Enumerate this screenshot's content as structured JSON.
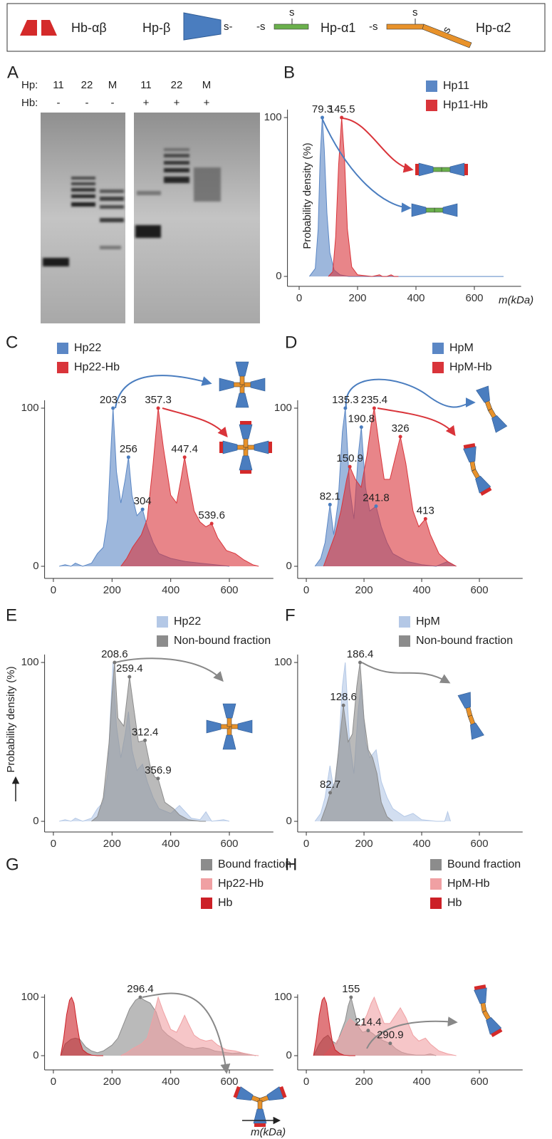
{
  "legend": {
    "items": [
      {
        "label": "Hb-αβ",
        "icon_labels": []
      },
      {
        "label": "Hp-β",
        "icon_labels": [
          "s-"
        ]
      },
      {
        "label": "Hp-α1",
        "icon_labels": [
          "-s",
          "s"
        ]
      },
      {
        "label": "Hp-α2",
        "icon_labels": [
          "-s",
          "s",
          "s"
        ]
      }
    ]
  },
  "gel": {
    "panel": "A",
    "row_labels": [
      "Hp:",
      "Hb:"
    ],
    "lanes": [
      {
        "hp": "11",
        "hb": "-"
      },
      {
        "hp": "22",
        "hb": "-"
      },
      {
        "hp": "M",
        "hb": "-"
      },
      {
        "hp": "11",
        "hb": "+"
      },
      {
        "hp": "22",
        "hb": "+"
      },
      {
        "hp": "M",
        "hb": "+"
      }
    ]
  },
  "chart_data": [
    {
      "panel": "B",
      "type": "area",
      "x_label": "m(kDa)",
      "y_label": "Probability density (%)",
      "xlim": [
        -40,
        760
      ],
      "ylim": [
        -5,
        105
      ],
      "xticks": [
        0,
        200,
        400,
        600
      ],
      "yticks": [
        0,
        100
      ],
      "series": [
        {
          "name": "Hp11",
          "color": "#5b87c5",
          "x": [
            35,
            55,
            65,
            72,
            79.3,
            86,
            95,
            105,
            120,
            140,
            170,
            200,
            300,
            450,
            700
          ],
          "values": [
            0,
            5,
            30,
            75,
            100,
            80,
            40,
            15,
            4,
            1,
            0,
            0,
            0,
            0,
            0
          ]
        },
        {
          "name": "Hp11-Hb",
          "color": "#d9343a",
          "x": [
            100,
            115,
            125,
            135,
            145.5,
            155,
            165,
            180,
            200,
            250,
            275,
            285,
            300,
            315,
            325,
            340
          ],
          "values": [
            0,
            3,
            25,
            70,
            100,
            75,
            30,
            6,
            1,
            0,
            1,
            0,
            0,
            1,
            0,
            0
          ]
        }
      ],
      "annotations": [
        {
          "x": 79.3,
          "y": 100,
          "color": "#4a7dbf"
        },
        {
          "x": 145.5,
          "y": 100,
          "color": "#d9343a"
        }
      ]
    },
    {
      "panel": "C",
      "type": "area",
      "xlim": [
        -30,
        750
      ],
      "ylim": [
        -5,
        105
      ],
      "xticks": [
        0,
        200,
        400,
        600
      ],
      "yticks": [
        0,
        100
      ],
      "series": [
        {
          "name": "Hp22",
          "color": "#5b87c5",
          "x": [
            20,
            40,
            60,
            75,
            100,
            130,
            150,
            170,
            185,
            195,
            203.3,
            215,
            230,
            245,
            256,
            268,
            285,
            304,
            320,
            340,
            360,
            400,
            450,
            500,
            550,
            600
          ],
          "values": [
            0,
            1,
            0,
            2,
            0,
            2,
            8,
            12,
            30,
            70,
            100,
            60,
            40,
            55,
            69,
            45,
            32,
            36,
            25,
            15,
            8,
            5,
            3,
            2,
            1,
            0
          ]
        },
        {
          "name": "Hp22-Hb",
          "color": "#d9343a",
          "x": [
            230,
            250,
            270,
            300,
            320,
            340,
            357.3,
            375,
            400,
            420,
            435,
            447.4,
            460,
            480,
            500,
            520,
            539.6,
            560,
            590,
            620,
            650,
            680,
            700
          ],
          "values": [
            0,
            5,
            12,
            20,
            30,
            65,
            100,
            75,
            45,
            40,
            55,
            69,
            55,
            35,
            28,
            25,
            27,
            18,
            10,
            8,
            4,
            1,
            0
          ]
        }
      ],
      "annotations": [
        {
          "x": 203.3,
          "y": 100,
          "color": "#4a7dbf"
        },
        {
          "x": 256,
          "y": 69,
          "color": "#4a7dbf"
        },
        {
          "x": 304,
          "y": 36,
          "color": "#4a7dbf"
        },
        {
          "x": 357.3,
          "y": 100,
          "color": "#d9343a"
        },
        {
          "x": 447.4,
          "y": 69,
          "color": "#d9343a"
        },
        {
          "x": 539.6,
          "y": 27,
          "color": "#d9343a"
        }
      ]
    },
    {
      "panel": "D",
      "type": "area",
      "xlim": [
        -30,
        750
      ],
      "ylim": [
        -5,
        105
      ],
      "xticks": [
        0,
        200,
        400,
        600
      ],
      "yticks": [
        0,
        100
      ],
      "series": [
        {
          "name": "HpM",
          "color": "#5b87c5",
          "x": [
            30,
            50,
            65,
            82.1,
            95,
            110,
            125,
            135.3,
            150,
            165,
            180,
            190.8,
            205,
            220,
            241.8,
            260,
            280,
            300,
            350,
            400,
            450,
            490,
            520
          ],
          "values": [
            0,
            5,
            15,
            39,
            20,
            40,
            85,
            100,
            50,
            30,
            70,
            88,
            50,
            35,
            38,
            25,
            15,
            8,
            3,
            1,
            0,
            3,
            0
          ]
        },
        {
          "name": "HpM-Hb",
          "color": "#d9343a",
          "x": [
            60,
            80,
            100,
            120,
            140,
            150.9,
            170,
            190,
            210,
            225,
            235.4,
            250,
            270,
            290,
            310,
            326,
            345,
            370,
            390,
            413,
            430,
            460,
            490,
            520
          ],
          "values": [
            0,
            10,
            20,
            35,
            55,
            63,
            55,
            50,
            70,
            90,
            100,
            80,
            55,
            55,
            70,
            82,
            65,
            35,
            25,
            30,
            20,
            8,
            3,
            0
          ]
        }
      ],
      "annotations": [
        {
          "x": 135.3,
          "y": 100,
          "color": "#4a7dbf"
        },
        {
          "x": 190.8,
          "y": 88,
          "color": "#4a7dbf"
        },
        {
          "x": 82.1,
          "y": 39,
          "color": "#4a7dbf"
        },
        {
          "x": 241.8,
          "y": 38,
          "color": "#4a7dbf"
        },
        {
          "x": 235.4,
          "y": 100,
          "color": "#d9343a"
        },
        {
          "x": 150.9,
          "y": 63,
          "color": "#d9343a"
        },
        {
          "x": 326,
          "y": 82,
          "color": "#d9343a"
        },
        {
          "x": 413,
          "y": 30,
          "color": "#d9343a"
        }
      ]
    },
    {
      "panel": "E",
      "type": "area",
      "y_label": "Probability density (%)",
      "xlim": [
        -30,
        750
      ],
      "ylim": [
        -5,
        105
      ],
      "xticks": [
        0,
        200,
        400,
        600
      ],
      "yticks": [
        0,
        100
      ],
      "series": [
        {
          "name": "Hp22",
          "color": "#b4c8e6",
          "x": [
            20,
            40,
            60,
            75,
            100,
            130,
            150,
            170,
            185,
            195,
            203.3,
            215,
            230,
            245,
            256,
            268,
            285,
            304,
            320,
            340,
            360,
            400,
            430,
            470,
            500,
            520,
            540,
            580,
            600
          ],
          "values": [
            0,
            1,
            0,
            2,
            0,
            2,
            8,
            12,
            30,
            70,
            100,
            60,
            40,
            55,
            69,
            45,
            32,
            36,
            25,
            15,
            8,
            5,
            10,
            2,
            1,
            6,
            0,
            1,
            0
          ]
        },
        {
          "name": "Non-bound fraction",
          "color": "#8c8c8c",
          "x": [
            130,
            150,
            170,
            190,
            200,
            208.6,
            220,
            240,
            259.4,
            275,
            290,
            312.4,
            330,
            345,
            356.9,
            380,
            410,
            430,
            460,
            500,
            520
          ],
          "values": [
            0,
            3,
            15,
            50,
            80,
            100,
            65,
            60,
            91,
            70,
            50,
            51,
            35,
            28,
            27,
            12,
            8,
            4,
            1,
            0,
            0
          ]
        }
      ],
      "annotations": [
        {
          "x": 208.6,
          "y": 100,
          "color": "#777777"
        },
        {
          "x": 259.4,
          "y": 91,
          "color": "#777777"
        },
        {
          "x": 312.4,
          "y": 51,
          "color": "#777777"
        },
        {
          "x": 356.9,
          "y": 27,
          "color": "#777777"
        }
      ]
    },
    {
      "panel": "F",
      "type": "area",
      "xlim": [
        -30,
        750
      ],
      "ylim": [
        -5,
        105
      ],
      "xticks": [
        0,
        200,
        400,
        600
      ],
      "yticks": [
        0,
        100
      ],
      "series": [
        {
          "name": "HpM",
          "color": "#b4c8e6",
          "x": [
            30,
            50,
            65,
            82,
            95,
            110,
            125,
            135,
            150,
            165,
            180,
            191,
            205,
            220,
            242,
            260,
            280,
            300,
            340,
            370,
            400,
            450,
            480,
            490,
            500
          ],
          "values": [
            0,
            5,
            15,
            35,
            20,
            40,
            85,
            100,
            50,
            30,
            70,
            88,
            50,
            40,
            45,
            25,
            15,
            8,
            3,
            5,
            1,
            0,
            0,
            6,
            0
          ]
        },
        {
          "name": "Non-bound fraction",
          "color": "#8c8c8c",
          "x": [
            50,
            70,
            82.7,
            100,
            115,
            128.6,
            145,
            160,
            175,
            186.4,
            200,
            215,
            230,
            245,
            260,
            280,
            300
          ],
          "values": [
            0,
            10,
            18,
            25,
            50,
            73,
            50,
            55,
            85,
            100,
            65,
            45,
            40,
            30,
            12,
            3,
            0
          ]
        }
      ],
      "annotations": [
        {
          "x": 186.4,
          "y": 100,
          "color": "#777777"
        },
        {
          "x": 128.6,
          "y": 73,
          "color": "#777777"
        },
        {
          "x": 82.7,
          "y": 18,
          "color": "#777777"
        }
      ]
    },
    {
      "panel": "G",
      "type": "area",
      "x_label": "m(kDa)",
      "xlim": [
        -30,
        750
      ],
      "ylim": [
        -5,
        105
      ],
      "xticks": [
        0,
        200,
        400,
        600
      ],
      "yticks": [
        0,
        100
      ],
      "series": [
        {
          "name": "Bound fraction",
          "color": "#8c8c8c",
          "x": [
            25,
            40,
            60,
            75,
            90,
            110,
            130,
            150,
            170,
            200,
            220,
            240,
            260,
            280,
            296.4,
            310,
            330,
            350,
            370,
            390,
            420,
            450,
            480,
            510,
            530,
            550,
            580,
            610,
            640,
            670,
            690
          ],
          "values": [
            0,
            20,
            28,
            30,
            28,
            15,
            8,
            5,
            8,
            18,
            30,
            55,
            80,
            95,
            100,
            95,
            90,
            75,
            45,
            35,
            25,
            15,
            12,
            14,
            12,
            8,
            6,
            4,
            5,
            2,
            0
          ]
        },
        {
          "name": "Hp22-Hb",
          "color": "#f0a0a3",
          "x": [
            230,
            250,
            270,
            300,
            320,
            340,
            357.3,
            375,
            400,
            420,
            435,
            447.4,
            460,
            480,
            500,
            520,
            539.6,
            560,
            590,
            620,
            650,
            680,
            700
          ],
          "values": [
            0,
            5,
            12,
            20,
            30,
            65,
            100,
            75,
            45,
            40,
            55,
            69,
            55,
            35,
            28,
            25,
            27,
            18,
            10,
            8,
            4,
            1,
            0
          ]
        },
        {
          "name": "Hb",
          "color": "#cc2027",
          "x": [
            25,
            35,
            45,
            55,
            62,
            70,
            80,
            90,
            100,
            115,
            130,
            150,
            170
          ],
          "values": [
            0,
            30,
            70,
            95,
            100,
            90,
            55,
            25,
            10,
            4,
            1,
            0,
            0
          ]
        }
      ],
      "annotations": [
        {
          "x": 296.4,
          "y": 100,
          "color": "#777777"
        }
      ]
    },
    {
      "panel": "H",
      "type": "area",
      "xlim": [
        -30,
        750
      ],
      "ylim": [
        -5,
        105
      ],
      "xticks": [
        0,
        200,
        400,
        600
      ],
      "yticks": [
        0,
        100
      ],
      "series": [
        {
          "name": "Bound fraction",
          "color": "#8c8c8c",
          "x": [
            25,
            45,
            60,
            75,
            90,
            105,
            120,
            135,
            145,
            155,
            165,
            180,
            195,
            214.4,
            230,
            250,
            270,
            290.9,
            310,
            330,
            350,
            380,
            410,
            430,
            450
          ],
          "values": [
            0,
            20,
            30,
            35,
            25,
            20,
            40,
            60,
            85,
            100,
            80,
            50,
            40,
            43,
            38,
            30,
            25,
            21,
            12,
            6,
            3,
            1,
            1,
            3,
            0
          ]
        },
        {
          "name": "HpM-Hb",
          "color": "#f0a0a3",
          "x": [
            60,
            80,
            100,
            120,
            140,
            150.9,
            170,
            190,
            210,
            225,
            235.4,
            250,
            270,
            290,
            310,
            326,
            345,
            370,
            390,
            413,
            430,
            460,
            490,
            520
          ],
          "values": [
            0,
            10,
            20,
            35,
            55,
            63,
            55,
            50,
            70,
            90,
            100,
            80,
            55,
            55,
            70,
            82,
            65,
            35,
            25,
            30,
            20,
            8,
            3,
            0
          ]
        },
        {
          "name": "Hb",
          "color": "#cc2027",
          "x": [
            25,
            35,
            45,
            55,
            62,
            70,
            80,
            90,
            100,
            115,
            130,
            150,
            170
          ],
          "values": [
            0,
            30,
            70,
            95,
            100,
            90,
            55,
            25,
            10,
            4,
            1,
            0,
            0
          ]
        }
      ],
      "annotations": [
        {
          "x": 155,
          "y": 100,
          "color": "#777777"
        },
        {
          "x": 214.4,
          "y": 43,
          "color": "#777777"
        },
        {
          "x": 290.9,
          "y": 21,
          "color": "#777777"
        }
      ]
    }
  ]
}
